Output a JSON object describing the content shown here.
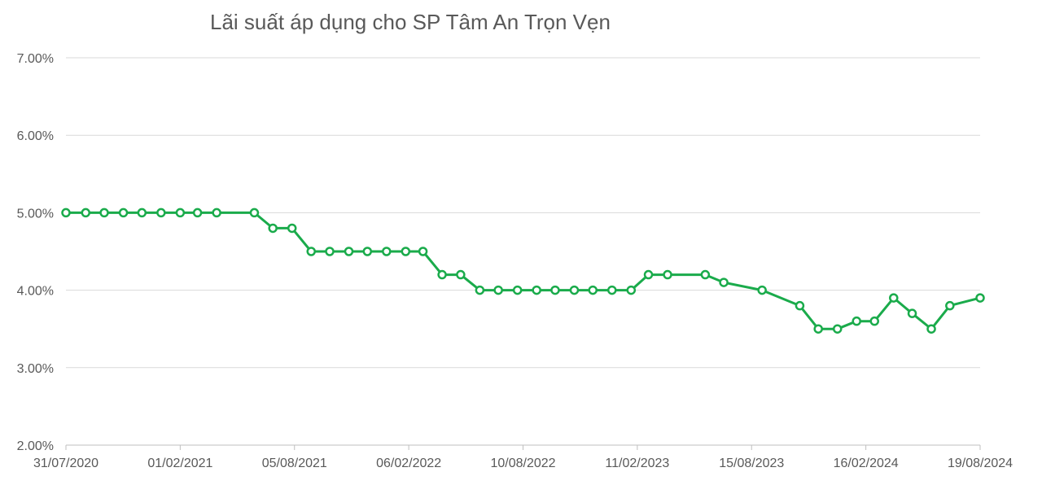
{
  "chart_data": {
    "type": "line",
    "title": "Lãi suất áp dụng cho SP Tâm An Trọn Vẹn",
    "xlabel": "",
    "ylabel": "",
    "ylim": [
      2.0,
      7.0
    ],
    "yticks": [
      "2.00%",
      "3.00%",
      "4.00%",
      "5.00%",
      "6.00%",
      "7.00%"
    ],
    "xticks": [
      "31/07/2020",
      "01/02/2021",
      "05/08/2021",
      "06/02/2022",
      "10/08/2022",
      "11/02/2023",
      "15/08/2023",
      "16/02/2024",
      "19/08/2024"
    ],
    "grid": true,
    "legend": "none",
    "color": "#1aab4b",
    "series": [
      {
        "values": [
          5.0,
          5.0,
          5.0,
          5.0,
          5.0,
          5.0,
          5.0,
          5.0,
          5.0,
          5.0,
          4.8,
          4.8,
          4.5,
          4.5,
          4.5,
          4.5,
          4.5,
          4.5,
          4.5,
          4.2,
          4.2,
          4.0,
          4.0,
          4.0,
          4.0,
          4.0,
          4.0,
          4.0,
          4.0,
          4.0,
          4.2,
          4.2,
          4.2,
          4.1,
          4.0,
          3.8,
          3.5,
          3.5,
          3.6,
          3.6,
          3.9,
          3.7,
          3.5,
          3.8,
          3.9
        ],
        "x": [
          "31/07/2020",
          "01/09/2020",
          "01/10/2020",
          "01/11/2020",
          "01/12/2020",
          "01/01/2021",
          "01/02/2021",
          "01/03/2021",
          "01/04/2021",
          "01/06/2021",
          "01/07/2021",
          "01/08/2021",
          "01/09/2021",
          "01/10/2021",
          "01/11/2021",
          "01/12/2021",
          "01/01/2022",
          "01/02/2022",
          "01/03/2022",
          "01/04/2022",
          "01/05/2022",
          "01/06/2022",
          "01/07/2022",
          "01/08/2022",
          "01/09/2022",
          "01/10/2022",
          "01/11/2022",
          "01/12/2022",
          "01/01/2023",
          "01/02/2023",
          "01/03/2023",
          "01/04/2023",
          "01/06/2023",
          "01/07/2023",
          "01/09/2023",
          "01/11/2023",
          "01/12/2023",
          "01/01/2024",
          "01/02/2024",
          "01/03/2024",
          "01/04/2024",
          "01/05/2024",
          "01/06/2024",
          "01/07/2024",
          "19/08/2024"
        ]
      }
    ]
  }
}
